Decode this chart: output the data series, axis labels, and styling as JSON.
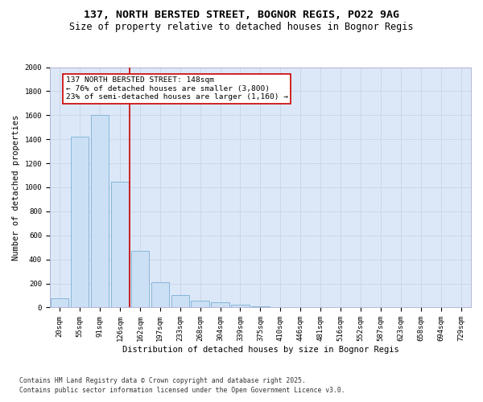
{
  "title": "137, NORTH BERSTED STREET, BOGNOR REGIS, PO22 9AG",
  "subtitle": "Size of property relative to detached houses in Bognor Regis",
  "xlabel": "Distribution of detached houses by size in Bognor Regis",
  "ylabel": "Number of detached properties",
  "categories": [
    "20sqm",
    "55sqm",
    "91sqm",
    "126sqm",
    "162sqm",
    "197sqm",
    "233sqm",
    "268sqm",
    "304sqm",
    "339sqm",
    "375sqm",
    "410sqm",
    "446sqm",
    "481sqm",
    "516sqm",
    "552sqm",
    "587sqm",
    "623sqm",
    "658sqm",
    "694sqm",
    "729sqm"
  ],
  "values": [
    75,
    1420,
    1600,
    1050,
    470,
    210,
    105,
    55,
    40,
    20,
    10,
    5,
    0,
    0,
    0,
    0,
    0,
    0,
    0,
    0,
    0
  ],
  "bar_color": "#cce0f5",
  "bar_edge_color": "#7aafd4",
  "property_line_x": 3.5,
  "property_line_color": "#cc0000",
  "annotation_text": "137 NORTH BERSTED STREET: 148sqm\n← 76% of detached houses are smaller (3,800)\n23% of semi-detached houses are larger (1,160) →",
  "annotation_box_color": "#ffffff",
  "annotation_box_edge_color": "#cc0000",
  "ylim": [
    0,
    2000
  ],
  "yticks": [
    0,
    200,
    400,
    600,
    800,
    1000,
    1200,
    1400,
    1600,
    1800,
    2000
  ],
  "grid_color": "#c8d4e8",
  "background_color": "#dce8f8",
  "fig_background": "#ffffff",
  "footer_line1": "Contains HM Land Registry data © Crown copyright and database right 2025.",
  "footer_line2": "Contains public sector information licensed under the Open Government Licence v3.0.",
  "title_fontsize": 9.5,
  "subtitle_fontsize": 8.5,
  "axis_label_fontsize": 7.5,
  "tick_fontsize": 6.5,
  "annotation_fontsize": 6.8,
  "footer_fontsize": 5.8
}
